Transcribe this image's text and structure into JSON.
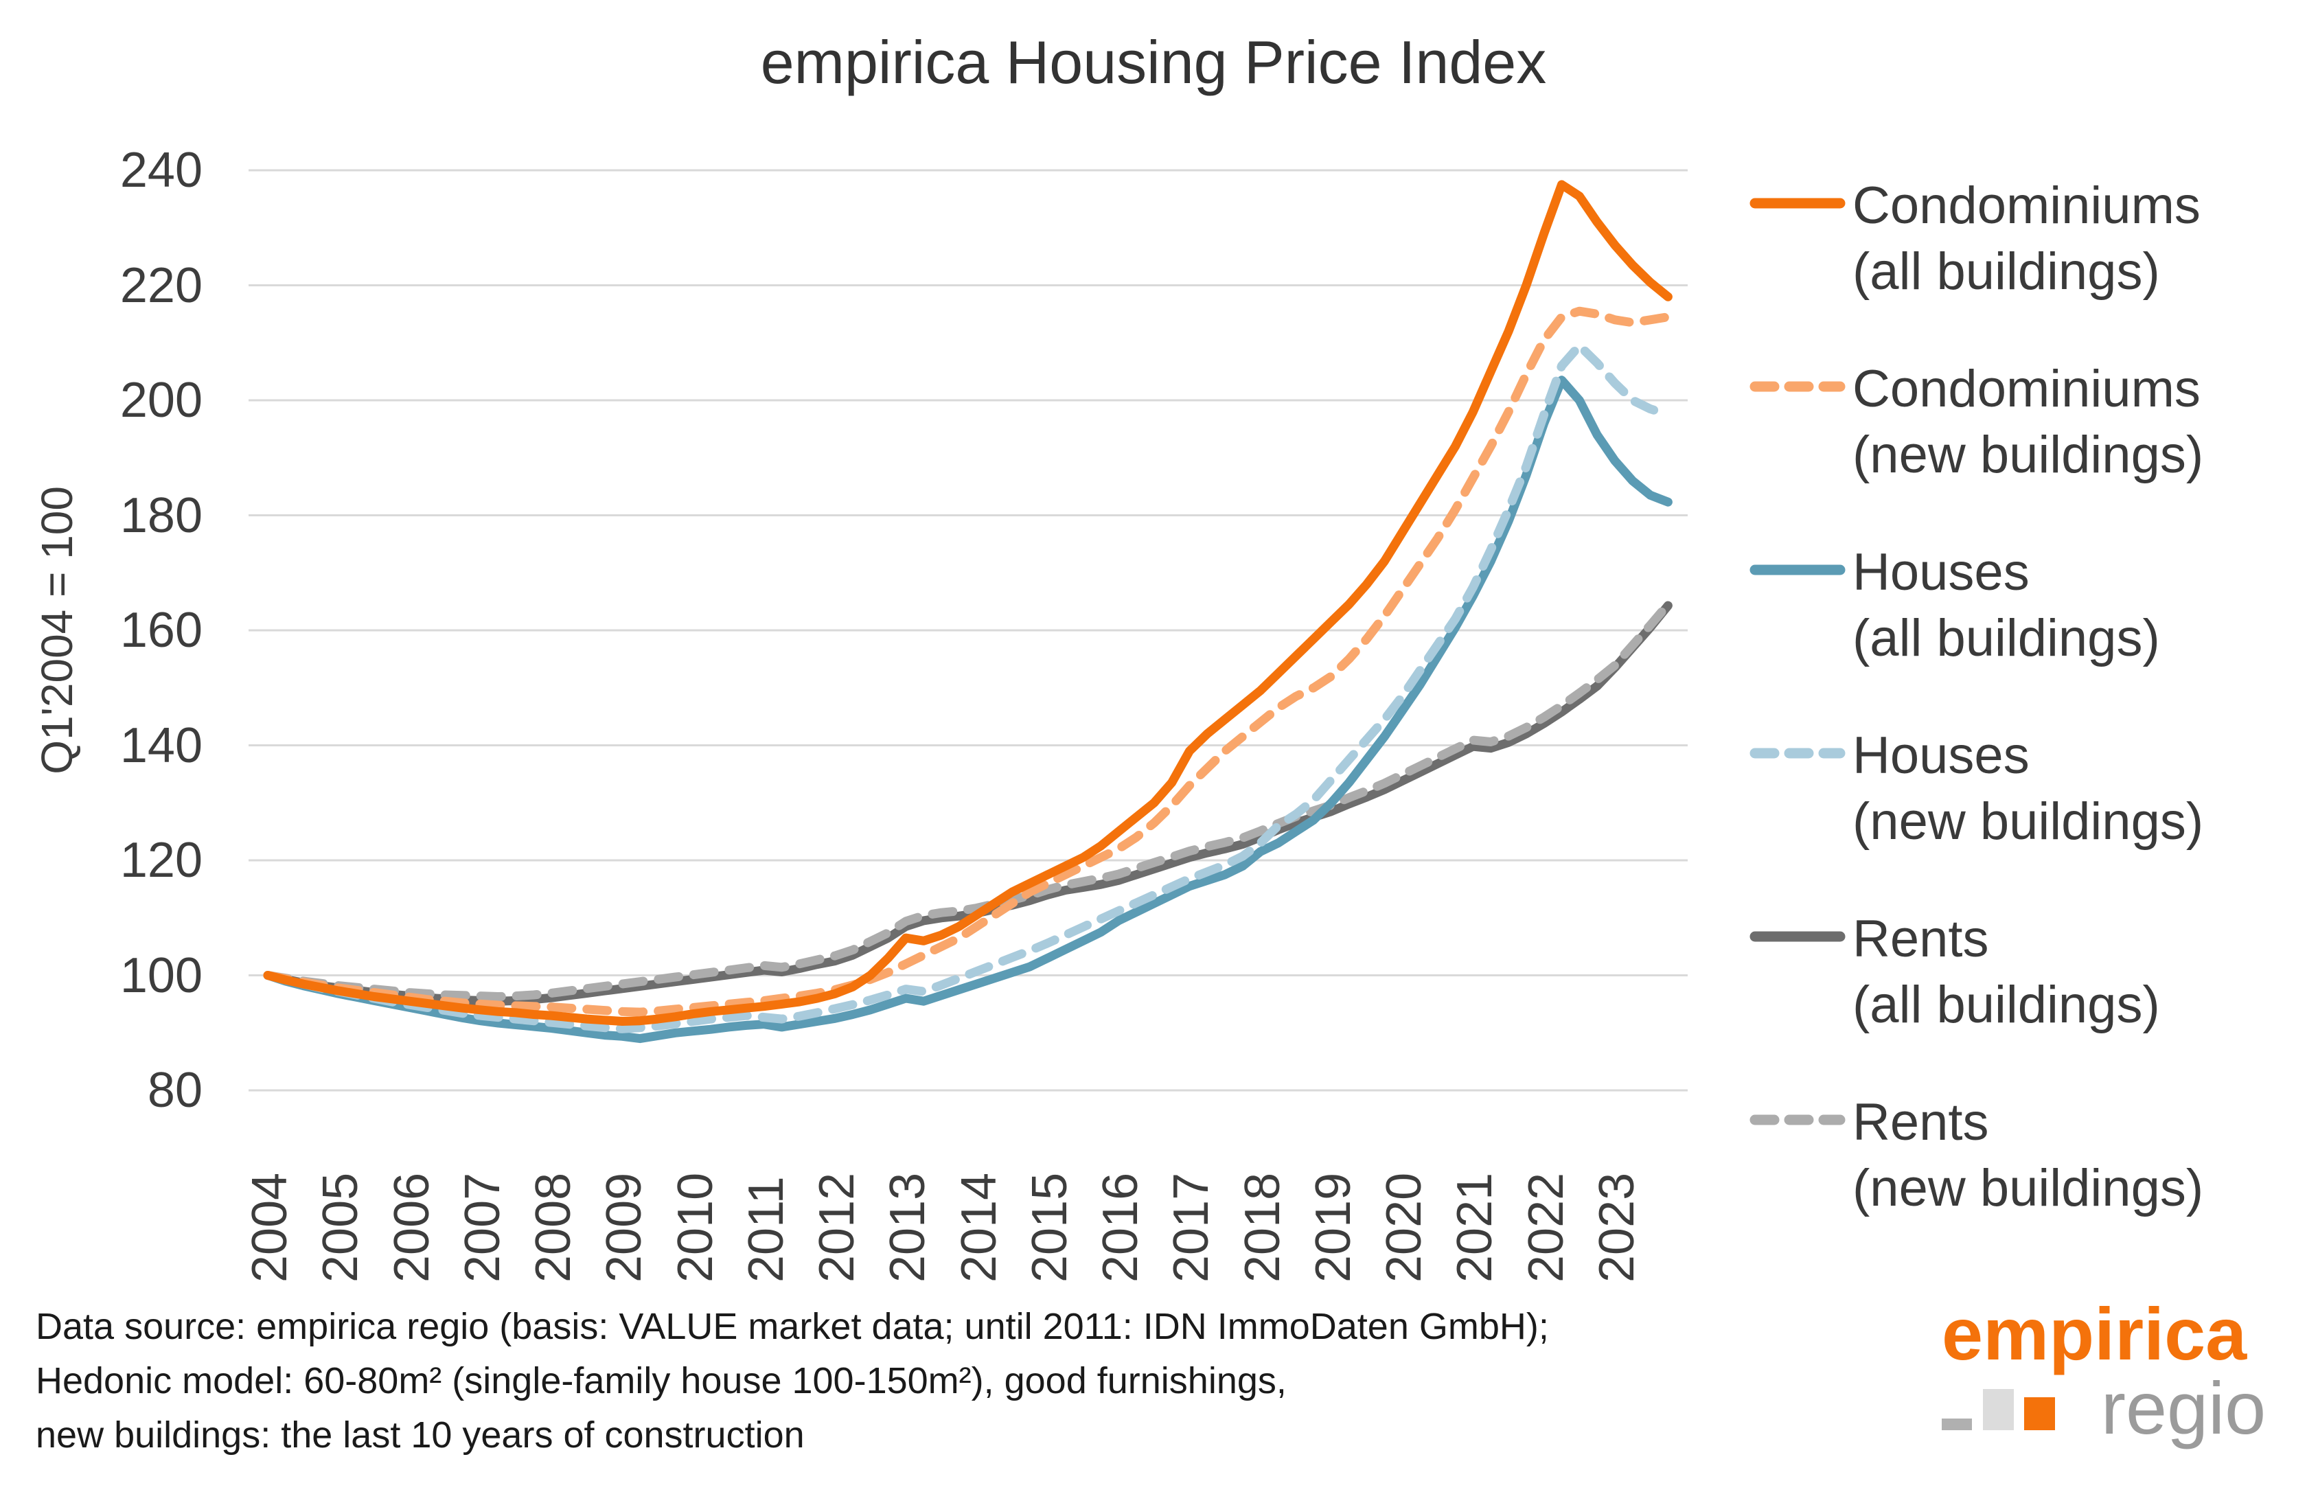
{
  "title": "empirica Housing Price Index",
  "y_axis_label": "Q1'2004 = 100",
  "footer": {
    "line1": "Data source: empirica regio (basis: VALUE market data; until 2011: IDN ImmoDaten GmbH);",
    "line2": "Hedonic model: 60-80m² (single-family house 100-150m²), good furnishings,",
    "line3": "new buildings: the last 10 years of construction"
  },
  "logo": {
    "brand": "empirica",
    "sub": "regio"
  },
  "colors": {
    "condo_all": "#f4720b",
    "condo_new": "#f9a66b",
    "houses_all": "#5b9bb4",
    "houses_new": "#a9cbdc",
    "rents_all": "#6d6d6d",
    "rents_new": "#acacac",
    "gridline": "#d9d9d9",
    "text": "#3a3a3a"
  },
  "chart_data": {
    "type": "line",
    "title": "empirica Housing Price Index",
    "ylabel": "Q1'2004 = 100",
    "ylim": [
      80,
      240
    ],
    "yticks": [
      80,
      100,
      120,
      140,
      160,
      180,
      200,
      220,
      240
    ],
    "grid": "horizontal",
    "legend_position": "right",
    "x_start_year": 2004,
    "x_step_years": 0.25,
    "x_tick_labels": [
      "2004",
      "2005",
      "2006",
      "2007",
      "2008",
      "2009",
      "2010",
      "2011",
      "2012",
      "2013",
      "2014",
      "2015",
      "2016",
      "2017",
      "2018",
      "2019",
      "2020",
      "2021",
      "2022",
      "2023"
    ],
    "draw_order": [
      4,
      5,
      2,
      3,
      1,
      0
    ],
    "series": [
      {
        "id": "condo_all",
        "label1": "Condominiums",
        "label2": "(all buildings)",
        "color": "#f4720b",
        "dashed": false,
        "values": [
          100,
          99.2,
          98.5,
          97.9,
          97.3,
          96.8,
          96.3,
          95.9,
          95.5,
          95.1,
          94.7,
          94.3,
          94,
          93.7,
          93.5,
          93.2,
          93,
          92.7,
          92.4,
          92.2,
          92,
          92.1,
          92.4,
          92.8,
          93.3,
          93.7,
          94,
          94.3,
          94.6,
          95,
          95.4,
          96,
          96.8,
          98,
          100,
          103,
          106.5,
          106,
          107,
          108.5,
          110.5,
          112.5,
          114.5,
          116,
          117.5,
          119,
          120.5,
          122.5,
          125,
          127.5,
          130,
          133.5,
          139,
          142,
          144.5,
          147,
          149.5,
          152.5,
          155.5,
          158.5,
          161.5,
          164.5,
          168,
          172,
          177,
          182,
          187,
          192,
          198,
          205,
          212,
          220,
          229,
          237.5,
          235.5,
          231,
          227,
          223.5,
          220.5,
          218
        ]
      },
      {
        "id": "condo_new",
        "label1": "Condominiums",
        "label2": "(new buildings)",
        "color": "#f9a66b",
        "dashed": true,
        "values": [
          100,
          99.4,
          98.8,
          98.3,
          97.8,
          97.4,
          97,
          96.6,
          96.2,
          95.8,
          95.5,
          95.2,
          95,
          94.8,
          94.7,
          94.6,
          94.5,
          94.3,
          94.1,
          93.9,
          93.7,
          93.6,
          93.8,
          94.1,
          94.4,
          94.7,
          95,
          95.3,
          95.6,
          96,
          96.4,
          96.9,
          97.5,
          98.3,
          99.3,
          100.5,
          102,
          103.5,
          105,
          106.5,
          108.5,
          110.5,
          112.5,
          114.5,
          116,
          117.5,
          119,
          120.5,
          122,
          124,
          126.5,
          129.5,
          133,
          136,
          139,
          141.5,
          144,
          146.5,
          148.5,
          150,
          152,
          155,
          158.5,
          162.5,
          167,
          171.5,
          176,
          181,
          186.5,
          192,
          198,
          204.5,
          210.5,
          214.5,
          215.5,
          215,
          214,
          213.5,
          214,
          214.5
        ]
      },
      {
        "id": "houses_all",
        "label1": "Houses",
        "label2": "(all buildings)",
        "color": "#5b9bb4",
        "dashed": false,
        "values": [
          100,
          99,
          98.2,
          97.5,
          96.8,
          96.2,
          95.6,
          95,
          94.4,
          93.8,
          93.2,
          92.6,
          92.1,
          91.7,
          91.4,
          91.1,
          90.8,
          90.4,
          90,
          89.6,
          89.4,
          89,
          89.5,
          90,
          90.3,
          90.6,
          91,
          91.3,
          91.5,
          91,
          91.5,
          92,
          92.5,
          93.2,
          94,
          95,
          96,
          95.5,
          96.5,
          97.5,
          98.5,
          99.5,
          100.5,
          101.5,
          103,
          104.5,
          106,
          107.5,
          109.5,
          111,
          112.5,
          114,
          115.5,
          116.5,
          117.5,
          119,
          121.5,
          123,
          125,
          127,
          130,
          133.5,
          137.5,
          141.5,
          146,
          150.5,
          155.5,
          160.5,
          166,
          172,
          179,
          187,
          196,
          203.5,
          200,
          194,
          189.5,
          186,
          183.5,
          182.3
        ]
      },
      {
        "id": "houses_new",
        "label1": "Houses",
        "label2": "(new buildings)",
        "color": "#a9cbdc",
        "dashed": true,
        "values": [
          100,
          99.2,
          98.5,
          97.8,
          97.2,
          96.6,
          96,
          95.4,
          94.9,
          94.4,
          93.9,
          93.4,
          93,
          92.7,
          92.4,
          92.1,
          91.8,
          91.5,
          91.2,
          90.9,
          90.7,
          90.9,
          91.2,
          91.6,
          92,
          92.4,
          92.7,
          93,
          92.7,
          92.4,
          92.9,
          93.5,
          94.2,
          94.9,
          95.7,
          96.6,
          97.6,
          97.2,
          98.3,
          99.5,
          100.7,
          101.9,
          103.1,
          104.3,
          105.6,
          107,
          108.4,
          109.8,
          111.2,
          112.6,
          114,
          115.4,
          116.8,
          118,
          119.2,
          120.7,
          123,
          126,
          128,
          130.5,
          134,
          137.5,
          141,
          144.5,
          148.5,
          153,
          157.5,
          162,
          167.5,
          174,
          181,
          188.5,
          197.5,
          206,
          209.5,
          206.5,
          203,
          200,
          198.5,
          197.5
        ]
      },
      {
        "id": "rents_all",
        "label1": "Rents",
        "label2": "(all buildings)",
        "color": "#6d6d6d",
        "dashed": false,
        "values": [
          100,
          99.3,
          98.7,
          98.2,
          97.8,
          97.4,
          97,
          96.7,
          96.4,
          96.1,
          95.9,
          95.7,
          95.6,
          95.5,
          95.6,
          95.8,
          96.1,
          96.5,
          96.9,
          97.3,
          97.7,
          98.1,
          98.5,
          98.9,
          99.3,
          99.7,
          100.1,
          100.5,
          100.9,
          100.6,
          101.2,
          101.9,
          102.5,
          103.5,
          105,
          106.5,
          108.5,
          109.5,
          110,
          110.3,
          110.8,
          111.5,
          112.2,
          113,
          114,
          114.8,
          115.3,
          115.8,
          116.5,
          117.5,
          118.5,
          119.5,
          120.5,
          121.3,
          122,
          122.8,
          124,
          125.3,
          126.5,
          127.5,
          128.5,
          129.8,
          131,
          132.3,
          133.8,
          135.3,
          136.8,
          138.3,
          139.8,
          139.5,
          140.5,
          142,
          143.8,
          145.8,
          148,
          150.3,
          153.5,
          157,
          160.5,
          164.3
        ]
      },
      {
        "id": "rents_new",
        "label1": "Rents",
        "label2": "(new buildings)",
        "color": "#acacac",
        "dashed": true,
        "values": [
          100,
          99.5,
          99,
          98.6,
          98.2,
          97.9,
          97.6,
          97.3,
          97,
          96.8,
          96.6,
          96.5,
          96.4,
          96.3,
          96.4,
          96.6,
          96.9,
          97.3,
          97.7,
          98.1,
          98.5,
          98.9,
          99.3,
          99.7,
          100.1,
          100.5,
          100.9,
          101.3,
          101.7,
          101.4,
          102,
          102.7,
          103.4,
          104.4,
          105.9,
          107.4,
          109.4,
          110.4,
          110.9,
          111.2,
          111.7,
          112.4,
          113.1,
          113.9,
          114.9,
          115.7,
          116.3,
          116.9,
          117.6,
          118.6,
          119.6,
          120.6,
          121.6,
          122.4,
          123.1,
          123.9,
          125.1,
          126.4,
          127.6,
          128.6,
          129.6,
          130.9,
          132.1,
          133.4,
          134.9,
          136.4,
          137.9,
          139.4,
          140.9,
          140.6,
          141.6,
          143.1,
          144.9,
          146.9,
          149.1,
          151.4,
          153.9,
          157.4,
          160.9,
          164.5
        ]
      }
    ]
  }
}
